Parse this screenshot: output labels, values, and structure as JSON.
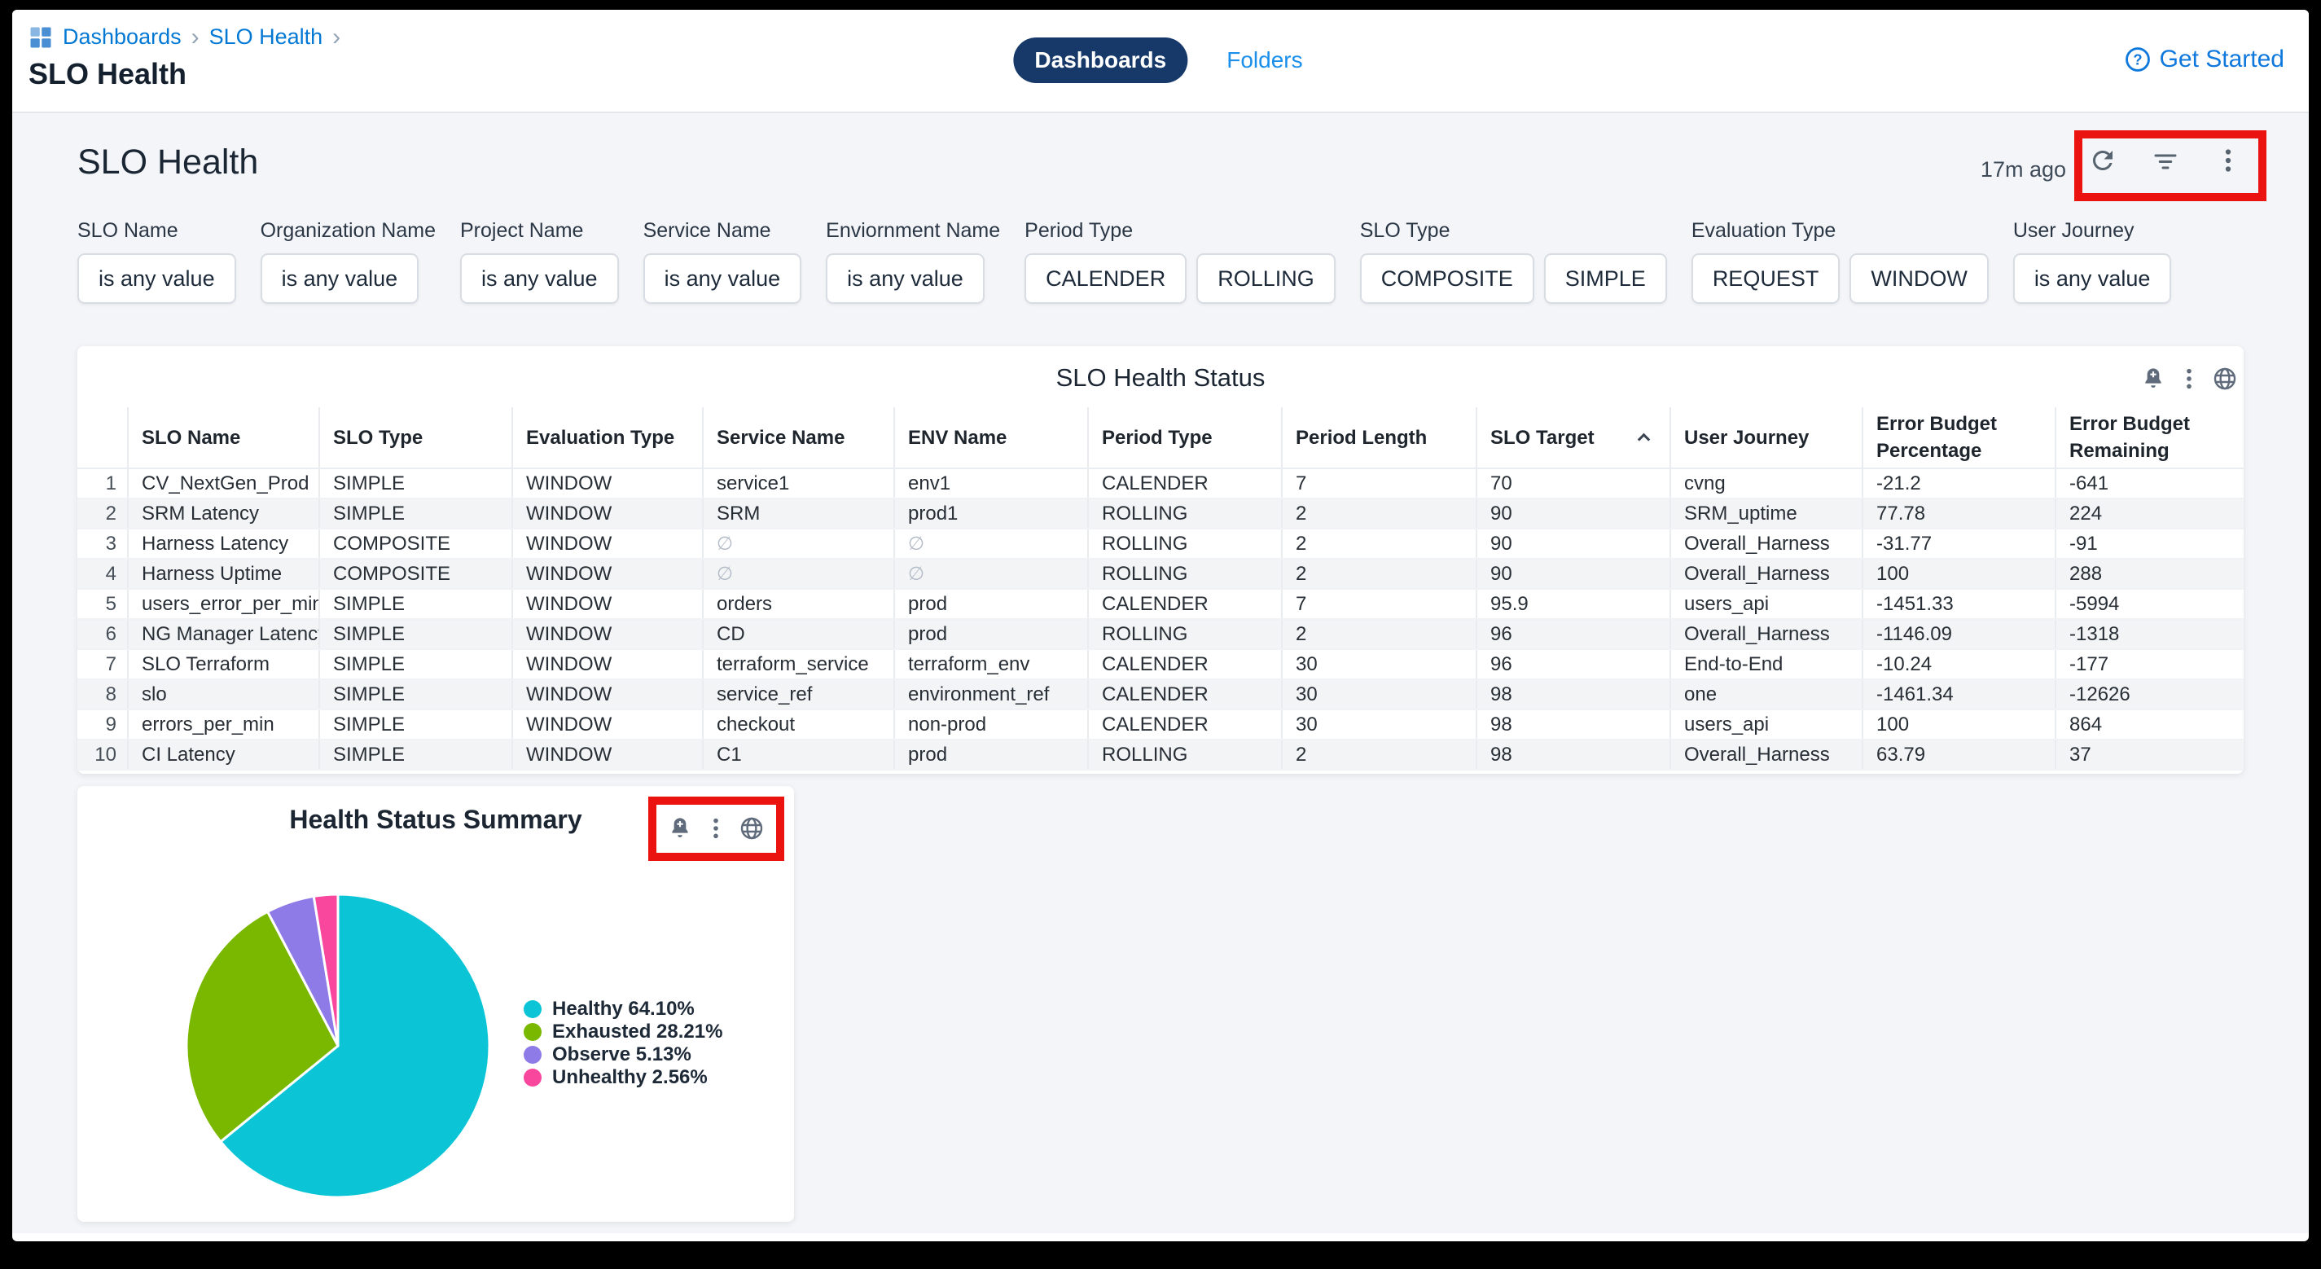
{
  "topbar": {
    "breadcrumb": [
      "Dashboards",
      "SLO Health"
    ],
    "page_title": "SLO Health",
    "tabs": [
      {
        "label": "Dashboards",
        "active": true
      },
      {
        "label": "Folders",
        "active": false
      }
    ],
    "help_label": "Get Started"
  },
  "dashboard": {
    "title": "SLO Health",
    "last_refresh": "17m ago"
  },
  "filters": [
    {
      "label": "SLO Name",
      "chips": [
        "is any value"
      ]
    },
    {
      "label": "Organization Name",
      "chips": [
        "is any value"
      ]
    },
    {
      "label": "Project Name",
      "chips": [
        "is any value"
      ]
    },
    {
      "label": "Service Name",
      "chips": [
        "is any value"
      ]
    },
    {
      "label": "Enviornment Name",
      "chips": [
        "is any value"
      ]
    },
    {
      "label": "Period Type",
      "chips": [
        "CALENDER",
        "ROLLING"
      ]
    },
    {
      "label": "SLO Type",
      "chips": [
        "COMPOSITE",
        "SIMPLE"
      ]
    },
    {
      "label": "Evaluation Type",
      "chips": [
        "REQUEST",
        "WINDOW"
      ]
    },
    {
      "label": "User Journey",
      "chips": [
        "is any value"
      ]
    }
  ],
  "table": {
    "title": "SLO Health Status",
    "columns": [
      "SLO Name",
      "SLO Type",
      "Evaluation Type",
      "Service Name",
      "ENV Name",
      "Period Type",
      "Period Length",
      "SLO Target",
      "User Journey",
      "Error Budget Percentage",
      "Error Budget Remaining"
    ],
    "sort": {
      "column": "SLO Target",
      "direction": "asc"
    },
    "rows": [
      {
        "n": "1",
        "cells": [
          "CV_NextGen_Prod",
          "SIMPLE",
          "WINDOW",
          "service1",
          "env1",
          "CALENDER",
          "7",
          "70",
          "cvng",
          "-21.2",
          "-641"
        ]
      },
      {
        "n": "2",
        "cells": [
          "SRM Latency",
          "SIMPLE",
          "WINDOW",
          "SRM",
          "prod1",
          "ROLLING",
          "2",
          "90",
          "SRM_uptime",
          "77.78",
          "224"
        ]
      },
      {
        "n": "3",
        "cells": [
          "Harness Latency",
          "COMPOSITE",
          "WINDOW",
          "∅",
          "∅",
          "ROLLING",
          "2",
          "90",
          "Overall_Harness",
          "-31.77",
          "-91"
        ]
      },
      {
        "n": "4",
        "cells": [
          "Harness Uptime",
          "COMPOSITE",
          "WINDOW",
          "∅",
          "∅",
          "ROLLING",
          "2",
          "90",
          "Overall_Harness",
          "100",
          "288"
        ]
      },
      {
        "n": "5",
        "cells": [
          "users_error_per_min",
          "SIMPLE",
          "WINDOW",
          "orders",
          "prod",
          "CALENDER",
          "7",
          "95.9",
          "users_api",
          "-1451.33",
          "-5994"
        ]
      },
      {
        "n": "6",
        "cells": [
          "NG Manager Latency",
          "SIMPLE",
          "WINDOW",
          "CD",
          "prod",
          "ROLLING",
          "2",
          "96",
          "Overall_Harness",
          "-1146.09",
          "-1318"
        ]
      },
      {
        "n": "7",
        "cells": [
          "SLO Terraform",
          "SIMPLE",
          "WINDOW",
          "terraform_service",
          "terraform_env",
          "CALENDER",
          "30",
          "96",
          "End-to-End",
          "-10.24",
          "-177"
        ]
      },
      {
        "n": "8",
        "cells": [
          "slo",
          "SIMPLE",
          "WINDOW",
          "service_ref",
          "environment_ref",
          "CALENDER",
          "30",
          "98",
          "one",
          "-1461.34",
          "-12626"
        ]
      },
      {
        "n": "9",
        "cells": [
          "errors_per_min",
          "SIMPLE",
          "WINDOW",
          "checkout",
          "non-prod",
          "CALENDER",
          "30",
          "98",
          "users_api",
          "100",
          "864"
        ]
      },
      {
        "n": "10",
        "cells": [
          "CI Latency",
          "SIMPLE",
          "WINDOW",
          "C1",
          "prod",
          "ROLLING",
          "2",
          "98",
          "Overall_Harness",
          "63.79",
          "37"
        ]
      }
    ]
  },
  "pie_tile": {
    "title": "Health Status Summary"
  },
  "chart_data": {
    "type": "pie",
    "title": "Health Status Summary",
    "labels": [
      "Healthy",
      "Exhausted",
      "Observe",
      "Unhealthy"
    ],
    "values": [
      64.1,
      28.21,
      5.13,
      2.56
    ],
    "legend_labels": [
      "Healthy 64.10%",
      "Exhausted 28.21%",
      "Observe 5.13%",
      "Unhealthy 2.56%"
    ],
    "colors": [
      "#0bc5d6",
      "#7ab800",
      "#8f7be8",
      "#f9479e"
    ],
    "legend_position": "right",
    "start_angle_deg": 0,
    "direction": "clockwise"
  },
  "colors": {
    "annotation_red": "#ea1310",
    "link_blue": "#0278d5",
    "active_tab_navy": "#16396a",
    "body_background": "#f3f5f8",
    "icon_gray": "#5f6b7a"
  }
}
